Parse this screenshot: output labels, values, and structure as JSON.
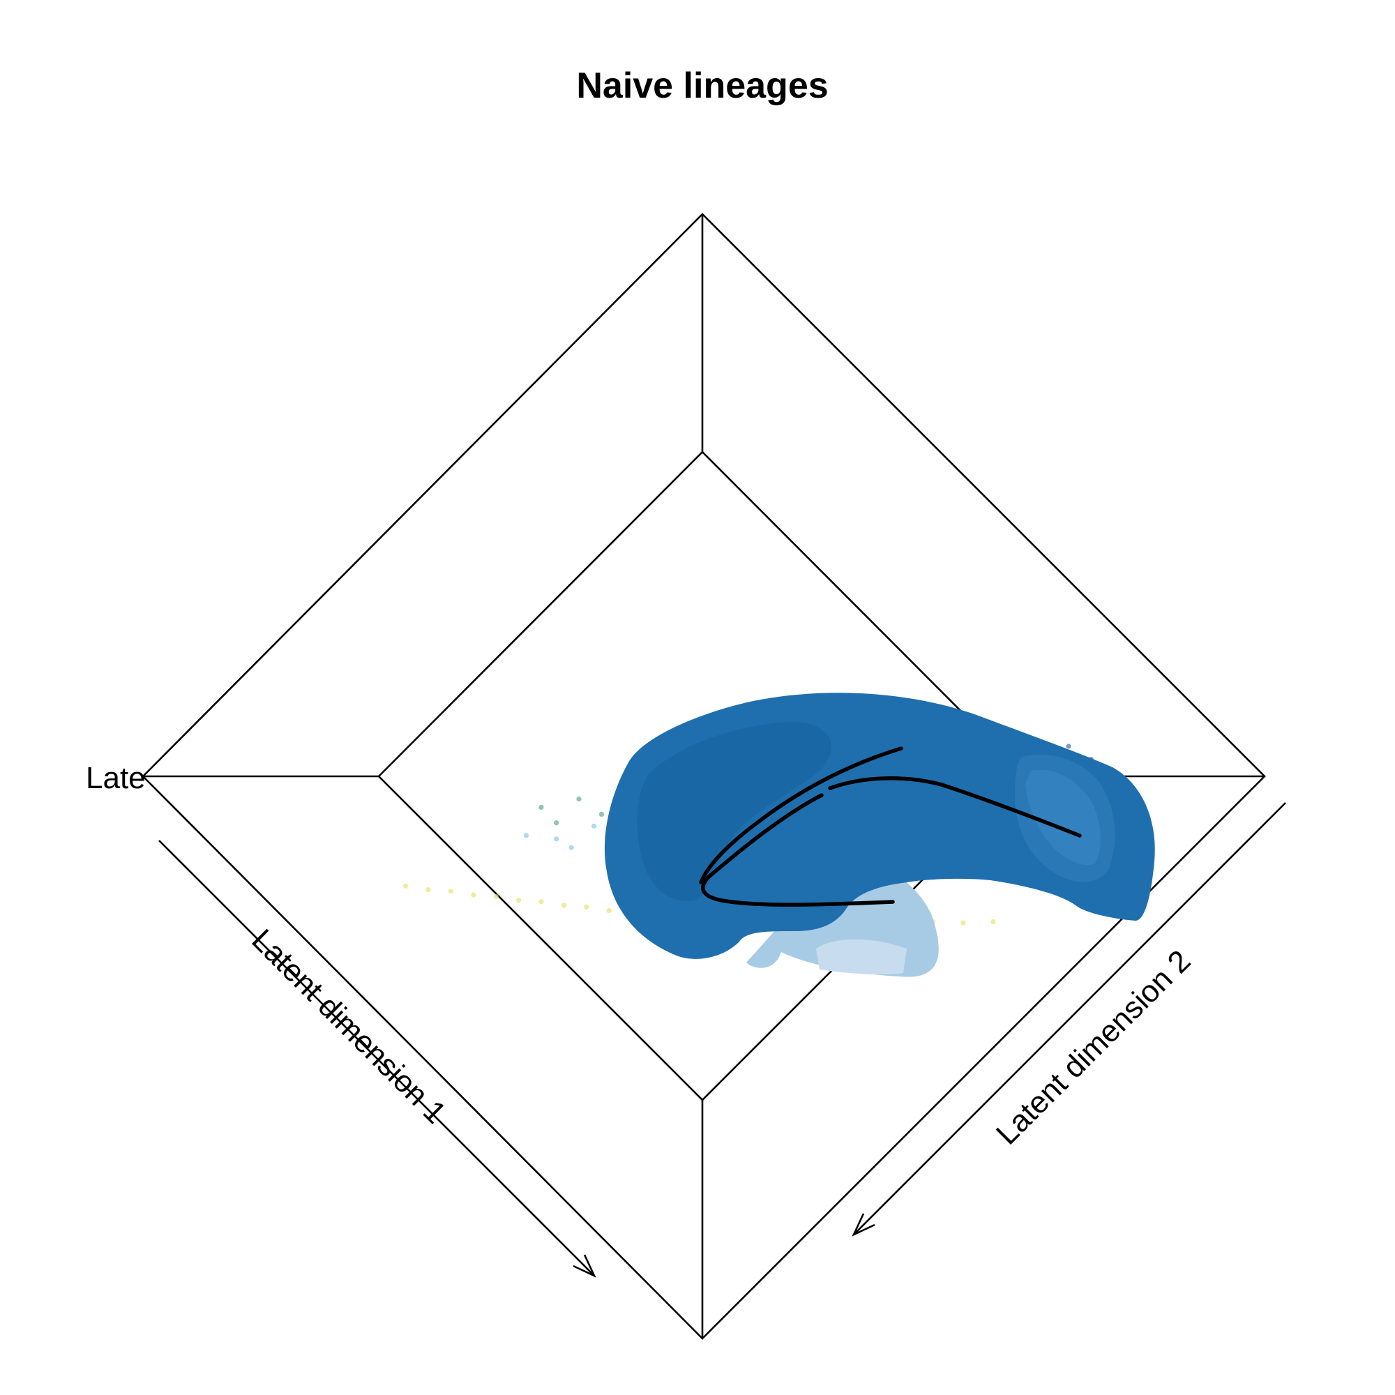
{
  "chart_data": {
    "type": "scatter",
    "title": "Naive lineages",
    "axes": {
      "x": {
        "label": "Latent dimension 1"
      },
      "y": {
        "label": "Latent dimension 2"
      },
      "z": {
        "label": "Late"
      }
    },
    "projection": "3d-perspective",
    "grid": false,
    "legend": "none",
    "colors": {
      "surface": "#1f6fae",
      "surface_dark": "#1660a0",
      "surface_light": "#9cc6e2",
      "curve": "#000000",
      "box": "#000000"
    },
    "point_palette": [
      "#2c5fa8",
      "#3f8fc4",
      "#7ac3e3",
      "#4aa08a",
      "#73b58e",
      "#e6de5c"
    ],
    "series": [
      {
        "color": "#2c5fa8",
        "x": [
          0.42,
          0.48,
          0.55,
          0.61,
          0.66,
          0.71,
          0.74,
          0.78,
          0.82,
          0.52,
          0.58,
          0.64,
          0.69,
          0.75,
          0.8,
          0.85,
          0.9,
          0.62,
          0.68,
          0.72,
          0.77,
          0.83,
          0.88,
          0.93,
          0.45,
          0.6,
          0.7,
          0.79,
          0.86,
          0.96
        ],
        "y": [
          0.95,
          0.9,
          0.88,
          0.86,
          0.9,
          0.84,
          0.92,
          0.87,
          0.85,
          0.82,
          0.8,
          0.83,
          0.78,
          0.81,
          0.79,
          0.82,
          0.8,
          0.76,
          0.74,
          0.77,
          0.75,
          0.73,
          0.76,
          0.74,
          0.86,
          0.72,
          0.7,
          0.71,
          0.69,
          0.68
        ]
      },
      {
        "color": "#4aa08a",
        "x": [
          0.2,
          0.25,
          0.3,
          0.35,
          0.4,
          0.45,
          0.5,
          0.55,
          0.22,
          0.28,
          0.33,
          0.38,
          0.43,
          0.48,
          0.53,
          0.58,
          0.63,
          0.68,
          0.73,
          0.78
        ],
        "y": [
          0.62,
          0.65,
          0.6,
          0.68,
          0.63,
          0.7,
          0.66,
          0.72,
          0.55,
          0.58,
          0.56,
          0.61,
          0.64,
          0.67,
          0.7,
          0.74,
          0.77,
          0.8,
          0.79,
          0.83
        ]
      },
      {
        "color": "#7ac3e3",
        "x": [
          0.18,
          0.22,
          0.27,
          0.31,
          0.36,
          0.24,
          0.29,
          0.34
        ],
        "y": [
          0.5,
          0.48,
          0.53,
          0.47,
          0.51,
          0.44,
          0.46,
          0.43
        ]
      },
      {
        "color": "#e6de5c",
        "x": [
          0.02,
          0.05,
          0.08,
          0.11,
          0.14,
          0.17,
          0.2,
          0.23,
          0.26,
          0.29,
          0.32,
          0.35,
          0.38,
          0.41,
          0.44,
          0.47,
          0.5,
          0.53,
          0.56,
          0.6,
          0.64,
          0.68,
          0.72,
          0.76,
          0.8
        ],
        "y": [
          0.3,
          0.28,
          0.27,
          0.25,
          0.24,
          0.22,
          0.21,
          0.19,
          0.18,
          0.16,
          0.15,
          0.14,
          0.13,
          0.12,
          0.11,
          0.1,
          0.09,
          0.08,
          0.08,
          0.07,
          0.07,
          0.06,
          0.06,
          0.05,
          0.05
        ]
      }
    ]
  }
}
